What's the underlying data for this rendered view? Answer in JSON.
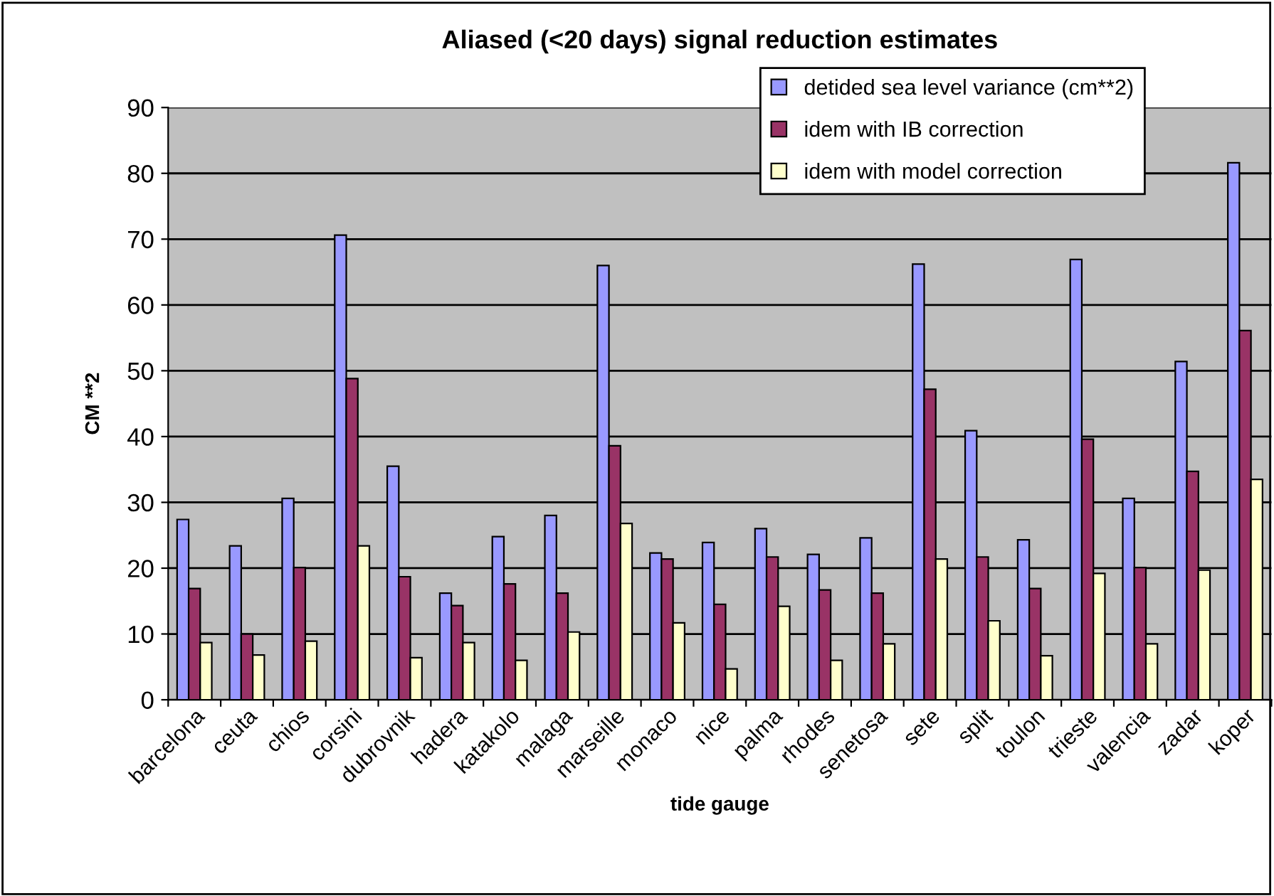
{
  "chart_data": {
    "type": "bar",
    "title": "Aliased (<20 days) signal reduction estimates",
    "xlabel": "tide gauge",
    "ylabel": "CM **2",
    "categories": [
      "barcelona",
      "ceuta",
      "chios",
      "corsini",
      "dubrovnik",
      "hadera",
      "katakolo",
      "malaga",
      "marseille",
      "monaco",
      "nice",
      "palma",
      "rhodes",
      "senetosa",
      "sete",
      "split",
      "toulon",
      "trieste",
      "valencia",
      "zadar",
      "koper"
    ],
    "series": [
      {
        "name": "detided sea level variance (cm**2)",
        "color": "#9999ff",
        "values": [
          27.4,
          23.4,
          30.6,
          70.6,
          35.5,
          16.2,
          24.8,
          28.0,
          66.0,
          22.3,
          23.9,
          26.0,
          22.1,
          24.6,
          66.2,
          40.9,
          24.3,
          66.9,
          30.6,
          51.4,
          81.6
        ]
      },
      {
        "name": "idem with IB correction",
        "color": "#993366",
        "values": [
          16.9,
          10.0,
          20.1,
          48.8,
          18.7,
          14.3,
          17.6,
          16.2,
          38.6,
          21.4,
          14.5,
          21.7,
          16.7,
          16.2,
          47.2,
          21.7,
          16.9,
          39.6,
          20.1,
          34.7,
          56.1
        ]
      },
      {
        "name": "idem with model correction",
        "color": "#ffffcc",
        "values": [
          8.7,
          6.8,
          8.9,
          23.4,
          6.4,
          8.7,
          6.0,
          10.3,
          26.8,
          11.7,
          4.7,
          14.2,
          6.0,
          8.5,
          21.4,
          12.0,
          6.7,
          19.2,
          8.5,
          19.7,
          33.5
        ]
      }
    ],
    "ylim": [
      0,
      90
    ],
    "yticks": [
      0,
      10,
      20,
      30,
      40,
      50,
      60,
      70,
      80,
      90
    ],
    "grid": "y",
    "legend": "top right"
  }
}
